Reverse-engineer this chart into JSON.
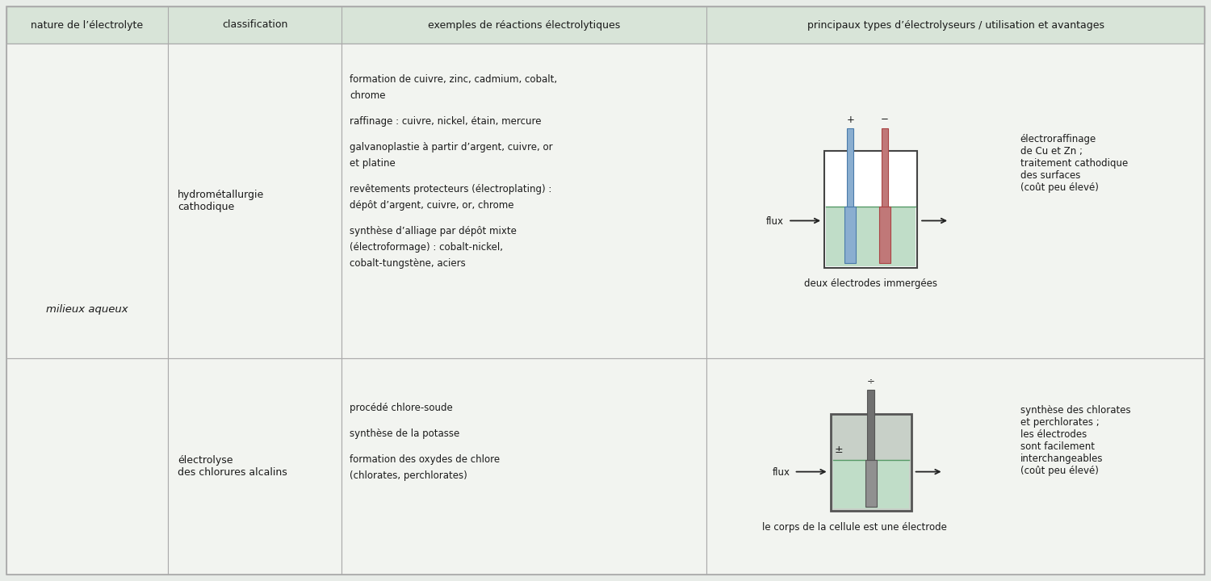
{
  "bg_outer": "#e8ece8",
  "bg_header": "#d8e4d8",
  "bg_cell_light": "#f2f4f0",
  "bg_cell_white": "#f8f9f6",
  "border_color": "#aaaaaa",
  "text_color": "#1a1a1a",
  "liquid_color": "#c0ddc8",
  "electrode_blue": "#8aaed0",
  "electrode_blue_dark": "#4a7aaa",
  "electrode_red": "#c07878",
  "electrode_red_dark": "#aa4444",
  "electrode_gray": "#888888",
  "electrode_gray_dark": "#555555",
  "tank_border": "#444444",
  "arrow_color": "#222222",
  "headers": [
    "nature de l’électrolyte",
    "classification",
    "exemples de réactions électrolytiques",
    "principaux types d’électrolyseurs / utilisation et avantages"
  ],
  "col1_text": "milieux aqueux",
  "row1_col2": "hydrométallurgie\ncathodique",
  "row2_col2": "électrolyse\ndes chlorures alcalins",
  "row1_col3_lines": [
    [
      "formation de cuivre, zinc, cadmium, cobalt,",
      false
    ],
    [
      "chrome",
      false
    ],
    [
      "",
      false
    ],
    [
      "raffinage : cuivre, nickel, étain, mercure",
      false
    ],
    [
      "",
      false
    ],
    [
      "galvanoplastie à partir d’argent, cuivre, or",
      false
    ],
    [
      "et platine",
      false
    ],
    [
      "",
      false
    ],
    [
      "revêtements protecteurs (électroplating) :",
      false
    ],
    [
      "dépôt d’argent, cuivre, or, chrome",
      false
    ],
    [
      "",
      false
    ],
    [
      "synthèse d’alliage par dépôt mixte",
      false
    ],
    [
      "(électroformage) : cobalt-nickel,",
      false
    ],
    [
      "cobalt-tungstène, aciers",
      false
    ]
  ],
  "row2_col3_lines": [
    [
      "procédé chlore-soude",
      false
    ],
    [
      "",
      false
    ],
    [
      "synthèse de la potasse",
      false
    ],
    [
      "",
      false
    ],
    [
      "formation des oxydes de chlore",
      false
    ],
    [
      "(chlorates, perchlorates)",
      false
    ]
  ],
  "row1_col4_desc": "électroraffinage\nde Cu et Zn ;\ntraitement cathodique\ndes surfaces\n(coût peu élevé)",
  "row1_col4_caption": "deux électrodes immergées",
  "row2_col4_desc": "synthèse des chlorates\net perchlorates ;\nles électrodes\nsont facilement\ninterchangeables\n(coût peu élevé)",
  "row2_col4_caption": "le corps de la cellule est une électrode"
}
